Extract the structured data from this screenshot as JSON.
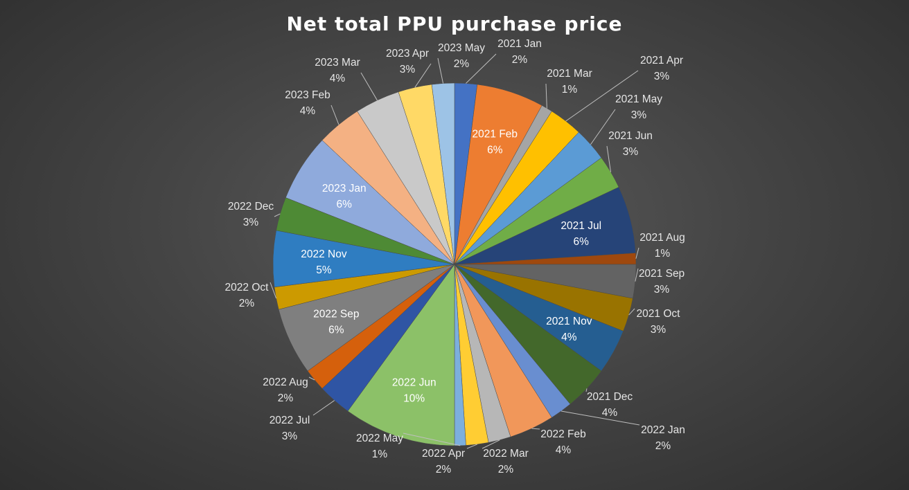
{
  "chart_data": {
    "type": "pie",
    "title": "Net total PPU purchase price",
    "slices": [
      {
        "label": "2021 Jan",
        "value": 2,
        "pct": "2%",
        "color": "#4472c4"
      },
      {
        "label": "2021 Feb",
        "value": 6,
        "pct": "6%",
        "color": "#ed7d31"
      },
      {
        "label": "2021 Mar",
        "value": 1,
        "pct": "1%",
        "color": "#a5a5a5"
      },
      {
        "label": "2021 Apr",
        "value": 3,
        "pct": "3%",
        "color": "#ffc000"
      },
      {
        "label": "2021 May",
        "value": 3,
        "pct": "3%",
        "color": "#5b9bd5"
      },
      {
        "label": "2021 Jun",
        "value": 3,
        "pct": "3%",
        "color": "#70ad47"
      },
      {
        "label": "2021 Jul",
        "value": 6,
        "pct": "6%",
        "color": "#264478"
      },
      {
        "label": "2021 Aug",
        "value": 1,
        "pct": "1%",
        "color": "#9e480e"
      },
      {
        "label": "2021 Sep",
        "value": 3,
        "pct": "3%",
        "color": "#636363"
      },
      {
        "label": "2021 Oct",
        "value": 3,
        "pct": "3%",
        "color": "#997300"
      },
      {
        "label": "2021 Nov",
        "value": 4,
        "pct": "4%",
        "color": "#255e91"
      },
      {
        "label": "2021 Dec",
        "value": 4,
        "pct": "4%",
        "color": "#43682b"
      },
      {
        "label": "2022 Jan",
        "value": 2,
        "pct": "2%",
        "color": "#698ed0"
      },
      {
        "label": "2022 Feb",
        "value": 4,
        "pct": "4%",
        "color": "#f1975a"
      },
      {
        "label": "2022 Mar",
        "value": 2,
        "pct": "2%",
        "color": "#b7b7b7"
      },
      {
        "label": "2022 Apr",
        "value": 2,
        "pct": "2%",
        "color": "#ffcd33"
      },
      {
        "label": "2022 May",
        "value": 1,
        "pct": "1%",
        "color": "#7cafdd"
      },
      {
        "label": "2022 Jun",
        "value": 10,
        "pct": "10%",
        "color": "#8cc168"
      },
      {
        "label": "2022 Jul",
        "value": 3,
        "pct": "3%",
        "color": "#2f55a4"
      },
      {
        "label": "2022 Aug",
        "value": 2,
        "pct": "2%",
        "color": "#d5600c"
      },
      {
        "label": "2022 Sep",
        "value": 6,
        "pct": "6%",
        "color": "#7f7f7f"
      },
      {
        "label": "2022 Oct",
        "value": 2,
        "pct": "2%",
        "color": "#cc9a00"
      },
      {
        "label": "2022 Nov",
        "value": 5,
        "pct": "5%",
        "color": "#2f7dc1"
      },
      {
        "label": "2022 Dec",
        "value": 3,
        "pct": "3%",
        "color": "#4e8a35"
      },
      {
        "label": "2023 Jan",
        "value": 6,
        "pct": "6%",
        "color": "#8faadc"
      },
      {
        "label": "2023 Feb",
        "value": 4,
        "pct": "4%",
        "color": "#f4b183"
      },
      {
        "label": "2023 Mar",
        "value": 4,
        "pct": "4%",
        "color": "#c9c9c9"
      },
      {
        "label": "2023 Apr",
        "value": 3,
        "pct": "3%",
        "color": "#ffd966"
      },
      {
        "label": "2023 May",
        "value": 2,
        "pct": "2%",
        "color": "#9dc3e6"
      }
    ],
    "legend": "none"
  }
}
